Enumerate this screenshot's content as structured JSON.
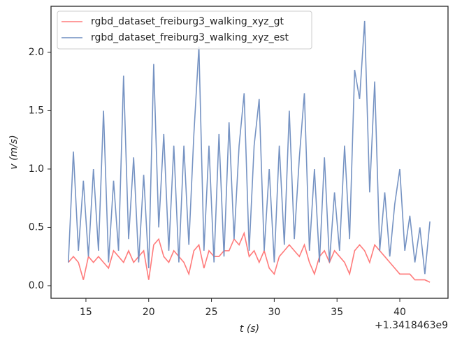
{
  "chart_data": {
    "type": "line",
    "xlabel": "t (s)",
    "ylabel": "v (m/s)",
    "x_offset_label": "+1.3418463e9",
    "legend": "upper left",
    "x": [
      13.6,
      14.0,
      14.4,
      14.8,
      15.2,
      15.6,
      16.0,
      16.4,
      16.8,
      17.2,
      17.6,
      18.0,
      18.4,
      18.8,
      19.2,
      19.6,
      20.0,
      20.4,
      20.8,
      21.2,
      21.6,
      22.0,
      22.4,
      22.8,
      23.2,
      23.6,
      24.0,
      24.4,
      24.8,
      25.2,
      25.6,
      26.0,
      26.4,
      26.8,
      27.2,
      27.6,
      28.0,
      28.4,
      28.8,
      29.2,
      29.6,
      30.0,
      30.4,
      30.8,
      31.2,
      31.6,
      32.0,
      32.4,
      32.8,
      33.2,
      33.6,
      34.0,
      34.4,
      34.8,
      35.2,
      35.6,
      36.0,
      36.4,
      36.8,
      37.2,
      37.6,
      38.0,
      38.4,
      38.8,
      39.2,
      39.6,
      40.0,
      40.4,
      40.8,
      41.2,
      41.6,
      42.0,
      42.4
    ],
    "series": [
      {
        "name": "rgbd_dataset_freiburg3_walking_xyz_gt",
        "color": "#ff7b7b",
        "values": [
          0.2,
          0.25,
          0.2,
          0.05,
          0.25,
          0.2,
          0.25,
          0.2,
          0.15,
          0.3,
          0.25,
          0.2,
          0.3,
          0.2,
          0.25,
          0.3,
          0.05,
          0.35,
          0.4,
          0.25,
          0.2,
          0.3,
          0.25,
          0.2,
          0.1,
          0.3,
          0.35,
          0.15,
          0.3,
          0.25,
          0.25,
          0.3,
          0.3,
          0.4,
          0.35,
          0.45,
          0.25,
          0.3,
          0.2,
          0.3,
          0.15,
          0.1,
          0.25,
          0.3,
          0.35,
          0.3,
          0.25,
          0.35,
          0.2,
          0.1,
          0.25,
          0.3,
          0.2,
          0.3,
          0.25,
          0.2,
          0.1,
          0.3,
          0.35,
          0.3,
          0.2,
          0.35,
          0.3,
          0.25,
          0.2,
          0.15,
          0.1,
          0.1,
          0.1,
          0.05,
          0.05,
          0.05,
          0.03
        ]
      },
      {
        "name": "rgbd_dataset_freiburg3_walking_xyz_est",
        "color": "#6f8dc0",
        "values": [
          0.2,
          1.15,
          0.3,
          0.9,
          0.25,
          1.0,
          0.3,
          1.5,
          0.2,
          0.9,
          0.3,
          1.8,
          0.4,
          1.1,
          0.2,
          0.95,
          0.15,
          1.9,
          0.5,
          1.3,
          0.3,
          1.2,
          0.2,
          1.2,
          0.35,
          1.3,
          2.05,
          0.3,
          1.2,
          0.2,
          1.3,
          0.25,
          1.4,
          0.4,
          1.2,
          1.65,
          0.3,
          1.2,
          1.6,
          0.3,
          1.0,
          0.2,
          1.2,
          0.35,
          1.5,
          0.4,
          1.1,
          1.65,
          0.3,
          1.0,
          0.2,
          1.1,
          0.2,
          0.8,
          0.3,
          1.2,
          0.4,
          1.85,
          1.6,
          2.27,
          0.8,
          1.75,
          0.3,
          0.8,
          0.25,
          0.7,
          1.0,
          0.3,
          0.6,
          0.2,
          0.5,
          0.1,
          0.55
        ]
      }
    ],
    "xlim": [
      12.22,
      43.84
    ],
    "ylim": [
      -0.108,
      2.395
    ],
    "xticks": [
      15,
      20,
      25,
      30,
      35,
      40
    ],
    "yticks": [
      {
        "value": 0,
        "label": "0.0"
      },
      0.5,
      {
        "value": 1,
        "label": "1.0"
      },
      1.5,
      {
        "value": 2,
        "label": "2.0"
      }
    ]
  }
}
